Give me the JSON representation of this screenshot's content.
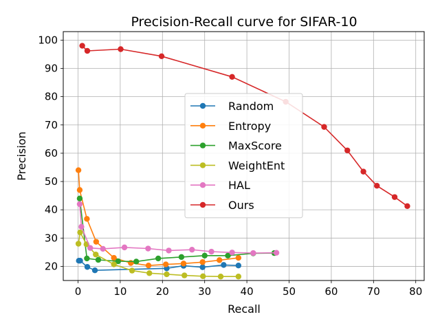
{
  "chart_data": {
    "type": "line",
    "title": "Precision-Recall curve for SIFAR-10",
    "xlabel": "Recall",
    "ylabel": "Precision",
    "xlim": [
      -3.5,
      82
    ],
    "ylim": [
      15,
      103
    ],
    "xticks": [
      0,
      10,
      20,
      30,
      40,
      50,
      60,
      70,
      80
    ],
    "yticks": [
      20,
      30,
      40,
      50,
      60,
      70,
      80,
      90,
      100
    ],
    "grid": true,
    "legend_position": "center",
    "series": [
      {
        "name": "Random",
        "color": "#1f77b4",
        "x": [
          0.2,
          0.5,
          2.2,
          4.0,
          21.0,
          25.0,
          29.5,
          34.5,
          38.0
        ],
        "y": [
          22,
          22,
          19.8,
          18.6,
          19.3,
          20.2,
          19.7,
          20.5,
          20.3
        ]
      },
      {
        "name": "Entropy",
        "color": "#ff7f0e",
        "x": [
          0.1,
          0.4,
          2.1,
          4.3,
          8.5,
          12.5,
          16.7,
          20.8,
          25.0,
          29.5,
          33.5,
          38.0
        ],
        "y": [
          54,
          47,
          36.8,
          28.7,
          23,
          21.2,
          20.3,
          20.7,
          21,
          21.5,
          22.2,
          23
        ]
      },
      {
        "name": "MaxScore",
        "color": "#2ca02c",
        "x": [
          0.4,
          2.1,
          4.8,
          9.5,
          13.8,
          19.0,
          24.5,
          30.0,
          35.5,
          41.5,
          46.5
        ],
        "y": [
          44,
          22.8,
          22.3,
          21.8,
          21.7,
          22.8,
          23.3,
          23.8,
          23.8,
          24.6,
          24.7
        ]
      },
      {
        "name": "WeightEnt",
        "color": "#bcbd22",
        "x": [
          0.1,
          0.5,
          2.0,
          4.2,
          8.5,
          12.8,
          16.9,
          21.0,
          25.2,
          29.6,
          33.8,
          38.0
        ],
        "y": [
          28,
          32,
          27.8,
          24.2,
          20.7,
          18.5,
          17.6,
          17.2,
          16.8,
          16.5,
          16.4,
          16.4
        ]
      },
      {
        "name": "HAL",
        "color": "#e377c2",
        "x": [
          0.4,
          0.8,
          2.9,
          5.9,
          11.0,
          16.6,
          21.5,
          27.0,
          31.6,
          36.5,
          41.5,
          47.0
        ],
        "y": [
          42,
          34,
          26.5,
          26.2,
          26.7,
          26.3,
          25.6,
          25.9,
          25.2,
          24.9,
          24.7,
          24.8
        ]
      },
      {
        "name": "Ours",
        "color": "#d62728",
        "x": [
          1.0,
          2.2,
          10.1,
          19.8,
          36.5,
          49.2,
          58.3,
          63.8,
          67.6,
          70.8,
          75.0,
          78.0
        ],
        "y": [
          98,
          96.2,
          96.8,
          94.3,
          87,
          78.2,
          69.3,
          61,
          53.5,
          48.5,
          44.5,
          41.3
        ]
      }
    ]
  }
}
